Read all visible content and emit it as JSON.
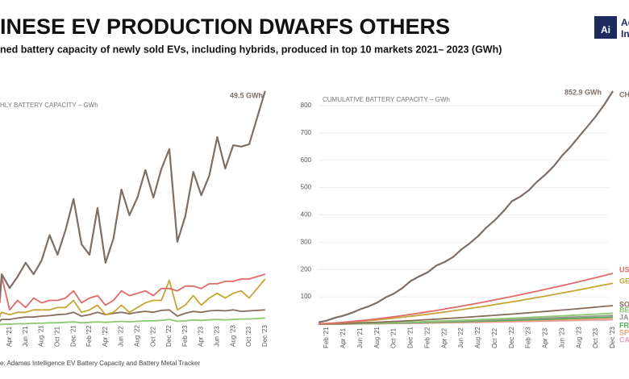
{
  "header": {
    "title": "INESE EV PRODUCTION DWARFS OTHERS",
    "subtitle": "ned battery capacity of newly sold EVs, including hybrids, produced in top 10 markets 2021– 2023 (GWh)",
    "logo": {
      "mark": "Ai",
      "line1": "Ac",
      "line2": "In"
    }
  },
  "source": "e: Adamas Intelligence EV Battery Capacity and Battery Metal Tracker",
  "chart_data": [
    {
      "type": "line",
      "title": "HLY BATTERY CAPACITY – GWh",
      "annotation": "49.5 GWh",
      "categories": [
        null,
        null,
        null,
        "Apr '21",
        null,
        "Jun '21",
        null,
        "Aug '21",
        null,
        "Oct '21",
        null,
        "Dec '21",
        null,
        "Feb '22",
        null,
        "Apr '22",
        null,
        "Jun '22",
        null,
        "Aug '22",
        null,
        "Oct '22",
        null,
        "Dec '22",
        null,
        "Feb '23",
        null,
        "Apr '23",
        null,
        "Jun '23",
        null,
        "Aug '23",
        null,
        "Oct '23",
        null,
        "Dec '23"
      ],
      "ylim": [
        0,
        52
      ],
      "series": [
        {
          "color": "#7d6f66",
          "values": [
            7,
            6,
            11.0,
            8.1,
            10.5,
            13.4,
            11.0,
            13.9,
            19.2,
            15.1,
            20.3,
            26.8,
            17.3,
            15.1,
            24.9,
            13.4,
            18.5,
            28.8,
            23.4,
            27.1,
            32.9,
            27.1,
            33.1,
            37.3,
            17.8,
            23.2,
            32.5,
            27.6,
            31.7,
            39.8,
            33.2,
            38.1,
            37.8,
            38.3,
            43.9,
            49.5
          ]
        },
        {
          "color": "#e06a6a",
          "values": [
            5,
            6,
            10.5,
            3.5,
            5.5,
            4,
            6,
            5,
            5.5,
            5.5,
            6,
            7.5,
            5,
            6,
            6.5,
            4.5,
            5.5,
            7.5,
            6.5,
            7,
            7.5,
            6.5,
            8,
            8,
            7.5,
            8.5,
            8.5,
            8,
            9,
            9,
            9.5,
            9.5,
            10,
            10,
            10.5,
            11
          ]
        },
        {
          "color": "#c4a535",
          "values": [
            2,
            2.5,
            3,
            2.5,
            3,
            3,
            3.5,
            3.5,
            3.5,
            4,
            4,
            5.5,
            3,
            3.5,
            4.5,
            2.5,
            3,
            4.5,
            3,
            4,
            5,
            5.5,
            5.5,
            9.7,
            3.5,
            4.5,
            6.5,
            4.5,
            6,
            7,
            6,
            7,
            7.5,
            6,
            8,
            10
          ]
        },
        {
          "color": "#8b6b5a",
          "values": [
            1,
            1.2,
            1.5,
            1.5,
            1.8,
            2,
            2,
            2.2,
            2.3,
            2.5,
            2.6,
            3,
            2.2,
            2.5,
            3,
            2.5,
            2.8,
            3,
            2.7,
            3,
            3.2,
            3,
            3.4,
            3.5,
            2.2,
            2.8,
            3.2,
            3,
            3.3,
            3.4,
            3.3,
            3.5,
            3.2,
            3.3,
            3.4,
            3.5
          ]
        },
        {
          "color": "#8cc870",
          "values": [
            0.3,
            0.4,
            0.5,
            0.5,
            0.6,
            0.6,
            0.7,
            0.7,
            0.8,
            0.8,
            0.9,
            1,
            0.8,
            0.9,
            1,
            0.9,
            1,
            1.1,
            1,
            1.1,
            1.2,
            1.2,
            1.3,
            1.5,
            1.1,
            1.2,
            1.4,
            1.3,
            1.4,
            1.5,
            1.4,
            1.5,
            1.6,
            1.6,
            1.7,
            1.8
          ]
        }
      ]
    },
    {
      "type": "line",
      "title": "CUMULATIVE BATTERY CAPACITY – GWh",
      "annotation": "852.9 GWh",
      "categories": [
        null,
        "Feb '21",
        null,
        "Apr '21",
        null,
        "Jun '21",
        null,
        "Aug '21",
        null,
        "Oct '21",
        null,
        "Dec '21",
        null,
        "Feb '22",
        null,
        "Apr '22",
        null,
        "Jun '22",
        null,
        "Aug '22",
        null,
        "Oct '22",
        null,
        "Dec '22",
        null,
        "Feb '23",
        null,
        "Apr '23",
        null,
        "Jun '23",
        null,
        "Aug '23",
        null,
        "Oct '23",
        null,
        "Dec '23"
      ],
      "ylim": [
        0,
        850
      ],
      "yticks": [
        100,
        200,
        300,
        400,
        500,
        600,
        700,
        800
      ],
      "grid": true,
      "series": [
        {
          "name": "CH",
          "color": "#7d6f66",
          "values": [
            6.8,
            12.7,
            23.4,
            31.3,
            41.5,
            54.6,
            65.3,
            78.9,
            97.6,
            112.3,
            132.1,
            158.2,
            175.1,
            189.8,
            214.1,
            227.2,
            245.2,
            273.3,
            296.1,
            322.5,
            354.6,
            381.0,
            413.3,
            449.7,
            467.0,
            489.6,
            521.3,
            548.2,
            579.2,
            618.0,
            650.3,
            687.5,
            724.3,
            761.7,
            804.5,
            852.9
          ]
        },
        {
          "name": "US",
          "color": "#e06a6a",
          "values": [
            0.9,
            2.4,
            4.5,
            6.9,
            9.6,
            12.6,
            15.9,
            19.5,
            23.3,
            27.2,
            31.4,
            35.8,
            40.4,
            45.1,
            50.0,
            55.1,
            60.4,
            65.8,
            71.3,
            77.0,
            82.9,
            88.9,
            95.0,
            101.2,
            107.6,
            114.2,
            120.8,
            127.6,
            134.5,
            141.5,
            148.6,
            155.9,
            163.2,
            170.7,
            178.3,
            186.0
          ]
        },
        {
          "name": "GE",
          "color": "#c4a535",
          "values": [
            0.7,
            2.0,
            3.6,
            5.6,
            7.8,
            10.2,
            12.9,
            15.7,
            18.8,
            22.0,
            25.3,
            28.9,
            32.6,
            36.4,
            40.4,
            44.4,
            48.7,
            53.0,
            57.5,
            62.1,
            66.8,
            71.7,
            76.6,
            81.6,
            86.8,
            92.1,
            97.4,
            102.9,
            108.5,
            114.1,
            119.9,
            125.7,
            131.6,
            137.7,
            143.8,
            150.0
          ]
        },
        {
          "name": "SO",
          "color": "#8b6b5a",
          "values": [
            0.3,
            0.9,
            1.6,
            2.5,
            3.5,
            4.6,
            5.8,
            7.1,
            8.5,
            10.0,
            11.5,
            13.1,
            14.8,
            16.5,
            18.3,
            20.1,
            22.1,
            24.0,
            26.1,
            28.2,
            30.3,
            32.5,
            34.7,
            37.0,
            39.4,
            41.7,
            44.2,
            46.6,
            49.2,
            51.7,
            54.3,
            57.0,
            59.7,
            62.4,
            65.2,
            68.0
          ]
        },
        {
          "name": "BE",
          "color": "#8cc870",
          "values": [
            0.2,
            0.5,
            1,
            1.5,
            2.1,
            2.7,
            3.4,
            4.2,
            5,
            5.8,
            6.8,
            7.7,
            8.7,
            9.7,
            10.8,
            11.8,
            13,
            14.1,
            15.3,
            16.6,
            17.8,
            19.1,
            20.4,
            21.8,
            23.1,
            24.5,
            26,
            27.4,
            28.9,
            30.4,
            32,
            33.5,
            35.1,
            36.7,
            38.3,
            40
          ]
        },
        {
          "name": "JA",
          "color": "#9a9590",
          "values": [
            0.2,
            0.4,
            0.8,
            1.2,
            1.7,
            2.2,
            2.7,
            3.4,
            4,
            4.6,
            5.4,
            6.2,
            7,
            7.8,
            8.6,
            9.4,
            10.4,
            11.3,
            12.2,
            13.3,
            14.2,
            15.3,
            16.3,
            17.4,
            18.5,
            19.6,
            20.8,
            21.9,
            23.1,
            24.3,
            25.6,
            26.8,
            28.1,
            29.4,
            30.6,
            32
          ]
        },
        {
          "name": "FR",
          "color": "#4fae5a",
          "values": [
            0.1,
            0.3,
            0.6,
            1,
            1.3,
            1.8,
            2.2,
            2.7,
            3.3,
            3.8,
            4.4,
            5,
            5.6,
            6.3,
            7,
            7.7,
            8.4,
            9.2,
            9.9,
            10.8,
            11.6,
            12.4,
            13.3,
            14.2,
            15,
            15.9,
            16.9,
            17.8,
            18.8,
            19.8,
            20.8,
            21.8,
            22.8,
            23.9,
            24.9,
            26
          ]
        },
        {
          "name": "SP",
          "color": "#f0a070",
          "values": [
            0.1,
            0.3,
            0.5,
            0.7,
            1,
            1.4,
            1.7,
            2.1,
            2.5,
            2.9,
            3.4,
            3.9,
            4.3,
            4.8,
            5.4,
            5.9,
            6.5,
            7,
            7.7,
            8.3,
            8.9,
            9.6,
            10.2,
            10.9,
            11.6,
            12.3,
            13,
            13.7,
            14.5,
            15.2,
            16,
            16.8,
            17.6,
            18.3,
            19.2,
            20
          ]
        },
        {
          "name": "CA",
          "color": "#e8a0c0",
          "values": [
            0.1,
            0.2,
            0.4,
            0.6,
            0.8,
            1.1,
            1.4,
            1.7,
            2,
            2.3,
            2.7,
            3.1,
            3.5,
            3.9,
            4.3,
            4.7,
            5.2,
            5.6,
            6.1,
            6.6,
            7.1,
            7.6,
            8.2,
            8.7,
            9.3,
            9.8,
            10.4,
            11,
            11.6,
            12.2,
            12.8,
            13.4,
            14.1,
            14.7,
            15.3,
            16
          ]
        }
      ]
    }
  ]
}
